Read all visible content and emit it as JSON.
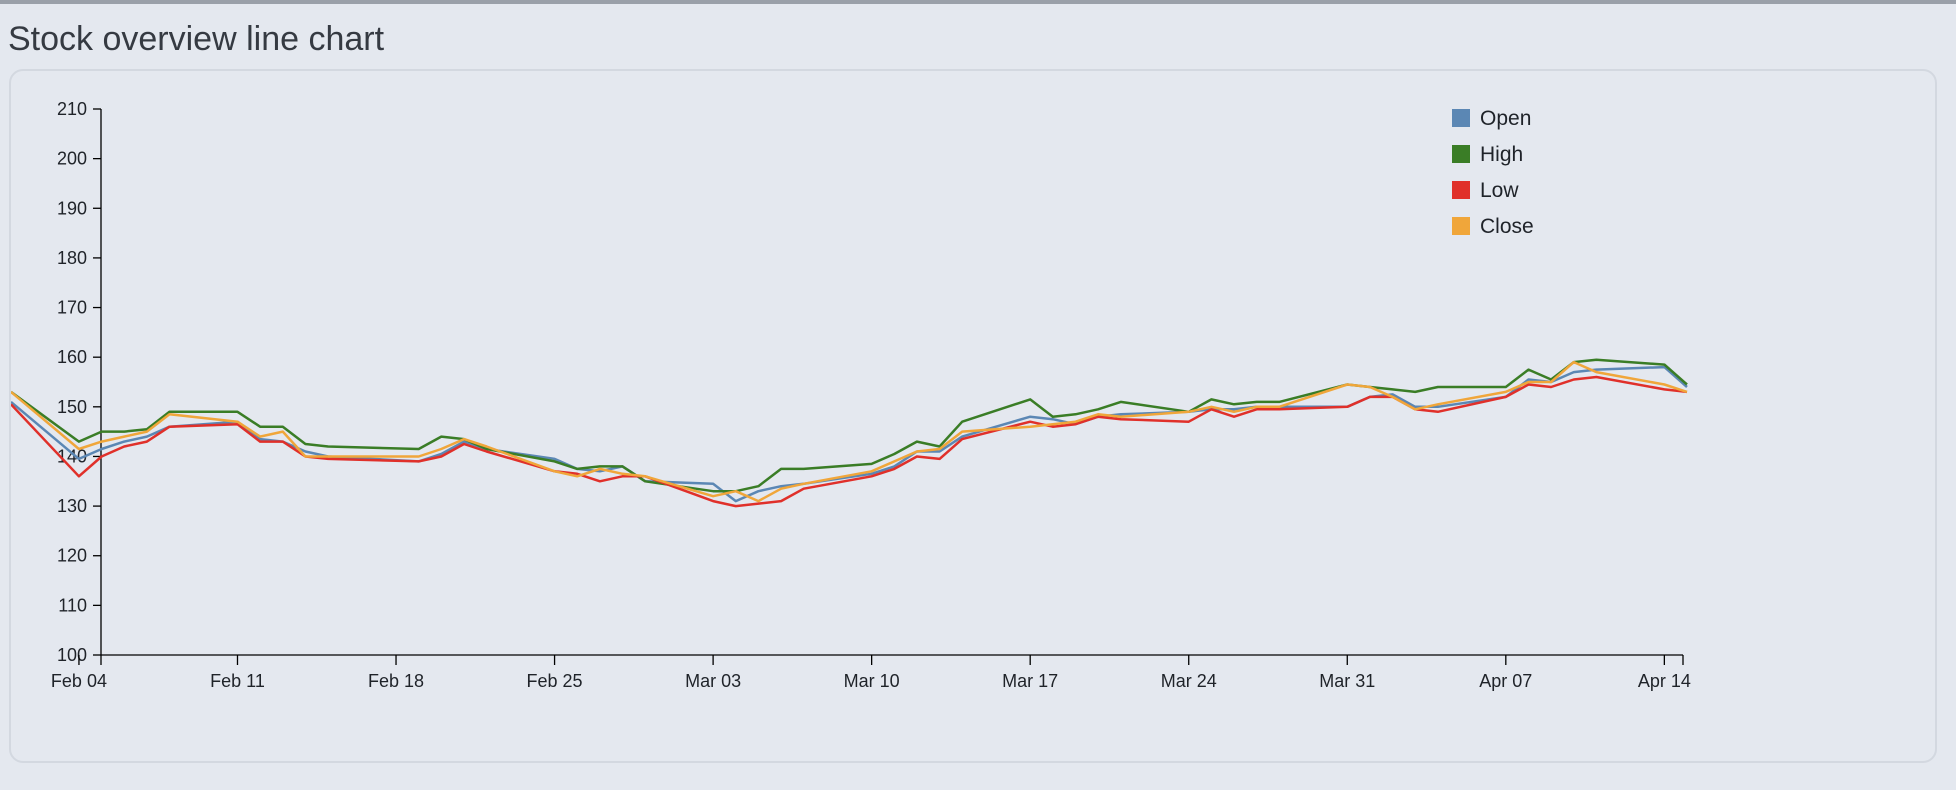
{
  "page": {
    "title": "Stock overview line chart"
  },
  "chart_data": {
    "type": "line",
    "title": "",
    "xlabel": "",
    "ylabel": "",
    "ylim": [
      100,
      210
    ],
    "y_ticks": [
      100,
      110,
      120,
      130,
      140,
      150,
      160,
      170,
      180,
      190,
      200,
      210
    ],
    "x_ticks": [
      "Feb 04",
      "Feb 11",
      "Feb 18",
      "Feb 25",
      "Mar 03",
      "Mar 10",
      "Mar 17",
      "Mar 24",
      "Mar 31",
      "Apr 07",
      "Apr 14"
    ],
    "legend_position": "top-right",
    "x": [
      "2019-02-01",
      "2019-02-04",
      "2019-02-05",
      "2019-02-06",
      "2019-02-07",
      "2019-02-08",
      "2019-02-11",
      "2019-02-12",
      "2019-02-13",
      "2019-02-14",
      "2019-02-15",
      "2019-02-19",
      "2019-02-20",
      "2019-02-21",
      "2019-02-22",
      "2019-02-25",
      "2019-02-26",
      "2019-02-27",
      "2019-02-28",
      "2019-03-01",
      "2019-03-04",
      "2019-03-05",
      "2019-03-06",
      "2019-03-07",
      "2019-03-08",
      "2019-03-11",
      "2019-03-12",
      "2019-03-13",
      "2019-03-14",
      "2019-03-15",
      "2019-03-18",
      "2019-03-19",
      "2019-03-20",
      "2019-03-21",
      "2019-03-22",
      "2019-03-25",
      "2019-03-26",
      "2019-03-27",
      "2019-03-28",
      "2019-03-29",
      "2019-04-01",
      "2019-04-02",
      "2019-04-03",
      "2019-04-04",
      "2019-04-05",
      "2019-04-08",
      "2019-04-09",
      "2019-04-10",
      "2019-04-11",
      "2019-04-12",
      "2019-04-15",
      "2019-04-16"
    ],
    "series": [
      {
        "name": "Open",
        "color": "#5b87b4",
        "values": [
          151,
          139.5,
          141.5,
          143,
          144,
          146,
          147,
          143.5,
          143,
          141,
          140,
          139,
          140.5,
          143,
          141.5,
          139.5,
          137.5,
          137,
          138,
          135,
          134.5,
          131,
          133,
          134,
          134.5,
          136.5,
          138,
          141,
          141,
          144,
          148,
          147.5,
          146.5,
          148,
          148.5,
          149,
          149.5,
          149.5,
          150,
          150,
          150,
          152,
          152.5,
          150,
          150,
          152,
          155.5,
          155,
          157,
          157.5,
          158,
          154
        ]
      },
      {
        "name": "High",
        "color": "#3a7d26",
        "values": [
          153,
          143,
          145,
          145,
          145.5,
          149,
          149,
          146,
          146,
          142.5,
          142,
          141.5,
          144,
          143.5,
          141.5,
          139,
          137.5,
          138,
          138,
          135,
          133,
          133,
          134,
          137.5,
          137.5,
          138.5,
          140.5,
          143,
          142,
          147,
          151.5,
          148,
          148.5,
          149.5,
          151,
          149,
          151.5,
          150.5,
          151,
          151,
          154.5,
          154,
          153.5,
          153,
          154,
          154,
          157.5,
          155.5,
          159,
          159.5,
          158.5,
          154.5
        ]
      },
      {
        "name": "Low",
        "color": "#e0302a",
        "values": [
          150.5,
          136,
          140,
          142,
          143,
          146,
          146.5,
          143,
          143,
          140,
          139.5,
          139,
          140,
          142.5,
          141,
          137,
          136.5,
          135,
          136,
          136,
          131,
          130,
          130.5,
          131,
          133.5,
          136,
          137.5,
          140,
          139.5,
          143.5,
          147,
          146,
          146.5,
          148,
          147.5,
          147,
          149.5,
          148,
          149.5,
          149.5,
          150,
          152,
          152,
          149.5,
          149,
          152,
          154.5,
          154,
          155.5,
          156,
          153.5,
          153
        ]
      },
      {
        "name": "Close",
        "color": "#f0a63a",
        "values": [
          153,
          141.5,
          143,
          144,
          145,
          148.5,
          147,
          144,
          145,
          140,
          140,
          140,
          141.5,
          143.5,
          142,
          137,
          136,
          137.5,
          136.5,
          136,
          132,
          133,
          131,
          133.5,
          134.5,
          137,
          139,
          141,
          141.5,
          145,
          146,
          146.5,
          147,
          148.5,
          148,
          149,
          150,
          149,
          150,
          150,
          154.5,
          154,
          152,
          149.5,
          150.5,
          153,
          155,
          155,
          159,
          157,
          154.5,
          153
        ]
      }
    ]
  }
}
